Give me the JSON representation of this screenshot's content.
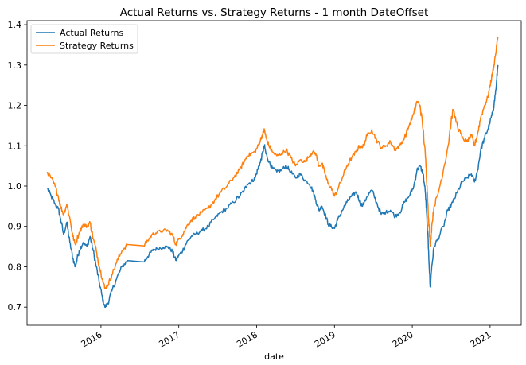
{
  "chart_data": {
    "type": "line",
    "title": "Actual Returns vs. Strategy Returns - 1 month DateOffset",
    "xlabel": "date",
    "ylabel": "",
    "xlim": [
      2015.05,
      2021.4
    ],
    "ylim": [
      0.655,
      1.41
    ],
    "x_ticks": [
      2016,
      2017,
      2018,
      2019,
      2020,
      2021
    ],
    "x_tick_labels": [
      "2016",
      "2017",
      "2018",
      "2019",
      "2020",
      "2021"
    ],
    "y_ticks": [
      0.7,
      0.8,
      0.9,
      1.0,
      1.1,
      1.2,
      1.3,
      1.4
    ],
    "y_tick_labels": [
      "0.7",
      "0.8",
      "0.9",
      "1.0",
      "1.1",
      "1.2",
      "1.3",
      "1.4"
    ],
    "grid": false,
    "legend_position": "top-left",
    "series": [
      {
        "name": "Actual Returns",
        "color": "#1f77b4",
        "points": [
          [
            2015.31,
            0.995
          ],
          [
            2015.36,
            0.975
          ],
          [
            2015.41,
            0.955
          ],
          [
            2015.45,
            0.945
          ],
          [
            2015.48,
            0.92
          ],
          [
            2015.52,
            0.88
          ],
          [
            2015.56,
            0.91
          ],
          [
            2015.6,
            0.86
          ],
          [
            2015.64,
            0.82
          ],
          [
            2015.67,
            0.8
          ],
          [
            2015.72,
            0.84
          ],
          [
            2015.77,
            0.86
          ],
          [
            2015.82,
            0.85
          ],
          [
            2015.86,
            0.875
          ],
          [
            2015.9,
            0.84
          ],
          [
            2015.94,
            0.8
          ],
          [
            2015.98,
            0.76
          ],
          [
            2016.02,
            0.72
          ],
          [
            2016.05,
            0.7
          ],
          [
            2016.09,
            0.71
          ],
          [
            2016.14,
            0.74
          ],
          [
            2016.2,
            0.77
          ],
          [
            2016.27,
            0.8
          ],
          [
            2016.34,
            0.815
          ],
          [
            2016.55,
            0.812
          ],
          [
            2016.6,
            0.825
          ],
          [
            2016.66,
            0.84
          ],
          [
            2016.72,
            0.845
          ],
          [
            2016.8,
            0.848
          ],
          [
            2016.86,
            0.85
          ],
          [
            2016.92,
            0.838
          ],
          [
            2016.96,
            0.816
          ],
          [
            2017.0,
            0.828
          ],
          [
            2017.05,
            0.84
          ],
          [
            2017.1,
            0.86
          ],
          [
            2017.16,
            0.875
          ],
          [
            2017.22,
            0.882
          ],
          [
            2017.3,
            0.89
          ],
          [
            2017.38,
            0.9
          ],
          [
            2017.46,
            0.92
          ],
          [
            2017.54,
            0.935
          ],
          [
            2017.62,
            0.945
          ],
          [
            2017.7,
            0.96
          ],
          [
            2017.78,
            0.975
          ],
          [
            2017.84,
            0.99
          ],
          [
            2017.88,
            1.005
          ],
          [
            2017.93,
            1.01
          ],
          [
            2017.98,
            1.02
          ],
          [
            2018.02,
            1.045
          ],
          [
            2018.05,
            1.06
          ],
          [
            2018.08,
            1.085
          ],
          [
            2018.1,
            1.1
          ],
          [
            2018.12,
            1.08
          ],
          [
            2018.16,
            1.06
          ],
          [
            2018.2,
            1.045
          ],
          [
            2018.26,
            1.035
          ],
          [
            2018.32,
            1.04
          ],
          [
            2018.38,
            1.05
          ],
          [
            2018.44,
            1.035
          ],
          [
            2018.5,
            1.02
          ],
          [
            2018.56,
            1.03
          ],
          [
            2018.62,
            1.015
          ],
          [
            2018.68,
            1.005
          ],
          [
            2018.72,
            0.99
          ],
          [
            2018.76,
            0.965
          ],
          [
            2018.8,
            0.94
          ],
          [
            2018.84,
            0.95
          ],
          [
            2018.88,
            0.93
          ],
          [
            2018.92,
            0.905
          ],
          [
            2018.96,
            0.9
          ],
          [
            2019.0,
            0.895
          ],
          [
            2019.04,
            0.915
          ],
          [
            2019.1,
            0.94
          ],
          [
            2019.16,
            0.96
          ],
          [
            2019.22,
            0.975
          ],
          [
            2019.28,
            0.985
          ],
          [
            2019.32,
            0.965
          ],
          [
            2019.36,
            0.95
          ],
          [
            2019.42,
            0.975
          ],
          [
            2019.48,
            0.99
          ],
          [
            2019.54,
            0.96
          ],
          [
            2019.6,
            0.93
          ],
          [
            2019.66,
            0.935
          ],
          [
            2019.72,
            0.94
          ],
          [
            2019.78,
            0.925
          ],
          [
            2019.84,
            0.935
          ],
          [
            2019.9,
            0.96
          ],
          [
            2019.96,
            0.975
          ],
          [
            2020.02,
            1.0
          ],
          [
            2020.06,
            1.04
          ],
          [
            2020.1,
            1.05
          ],
          [
            2020.14,
            1.03
          ],
          [
            2020.17,
            0.98
          ],
          [
            2020.19,
            0.91
          ],
          [
            2020.21,
            0.84
          ],
          [
            2020.23,
            0.75
          ],
          [
            2020.25,
            0.8
          ],
          [
            2020.28,
            0.85
          ],
          [
            2020.33,
            0.87
          ],
          [
            2020.4,
            0.9
          ],
          [
            2020.46,
            0.94
          ],
          [
            2020.52,
            0.96
          ],
          [
            2020.58,
            0.985
          ],
          [
            2020.64,
            1.01
          ],
          [
            2020.7,
            1.02
          ],
          [
            2020.76,
            1.03
          ],
          [
            2020.8,
            1.01
          ],
          [
            2020.84,
            1.04
          ],
          [
            2020.88,
            1.09
          ],
          [
            2020.93,
            1.12
          ],
          [
            2020.97,
            1.14
          ],
          [
            2021.0,
            1.16
          ],
          [
            2021.03,
            1.18
          ],
          [
            2021.05,
            1.2
          ],
          [
            2021.08,
            1.25
          ],
          [
            2021.1,
            1.3
          ]
        ]
      },
      {
        "name": "Strategy Returns",
        "color": "#ff7f0e",
        "points": [
          [
            2015.31,
            1.035
          ],
          [
            2015.36,
            1.02
          ],
          [
            2015.41,
            1.0
          ],
          [
            2015.45,
            0.975
          ],
          [
            2015.48,
            0.95
          ],
          [
            2015.52,
            0.93
          ],
          [
            2015.56,
            0.955
          ],
          [
            2015.6,
            0.92
          ],
          [
            2015.64,
            0.875
          ],
          [
            2015.67,
            0.855
          ],
          [
            2015.72,
            0.885
          ],
          [
            2015.77,
            0.905
          ],
          [
            2015.82,
            0.9
          ],
          [
            2015.86,
            0.91
          ],
          [
            2015.9,
            0.87
          ],
          [
            2015.94,
            0.84
          ],
          [
            2015.98,
            0.8
          ],
          [
            2016.02,
            0.77
          ],
          [
            2016.05,
            0.745
          ],
          [
            2016.09,
            0.755
          ],
          [
            2016.14,
            0.78
          ],
          [
            2016.2,
            0.81
          ],
          [
            2016.27,
            0.84
          ],
          [
            2016.34,
            0.855
          ],
          [
            2016.55,
            0.852
          ],
          [
            2016.6,
            0.865
          ],
          [
            2016.66,
            0.88
          ],
          [
            2016.72,
            0.885
          ],
          [
            2016.8,
            0.89
          ],
          [
            2016.86,
            0.89
          ],
          [
            2016.92,
            0.878
          ],
          [
            2016.96,
            0.856
          ],
          [
            2017.0,
            0.868
          ],
          [
            2017.05,
            0.88
          ],
          [
            2017.1,
            0.9
          ],
          [
            2017.16,
            0.915
          ],
          [
            2017.22,
            0.925
          ],
          [
            2017.3,
            0.935
          ],
          [
            2017.38,
            0.945
          ],
          [
            2017.46,
            0.965
          ],
          [
            2017.54,
            0.985
          ],
          [
            2017.62,
            1.0
          ],
          [
            2017.7,
            1.02
          ],
          [
            2017.78,
            1.04
          ],
          [
            2017.84,
            1.06
          ],
          [
            2017.88,
            1.075
          ],
          [
            2017.93,
            1.08
          ],
          [
            2017.98,
            1.085
          ],
          [
            2018.02,
            1.1
          ],
          [
            2018.05,
            1.115
          ],
          [
            2018.08,
            1.13
          ],
          [
            2018.1,
            1.14
          ],
          [
            2018.12,
            1.12
          ],
          [
            2018.16,
            1.1
          ],
          [
            2018.2,
            1.085
          ],
          [
            2018.26,
            1.075
          ],
          [
            2018.32,
            1.08
          ],
          [
            2018.38,
            1.09
          ],
          [
            2018.44,
            1.07
          ],
          [
            2018.5,
            1.05
          ],
          [
            2018.56,
            1.065
          ],
          [
            2018.62,
            1.06
          ],
          [
            2018.68,
            1.075
          ],
          [
            2018.72,
            1.085
          ],
          [
            2018.76,
            1.08
          ],
          [
            2018.8,
            1.05
          ],
          [
            2018.84,
            1.055
          ],
          [
            2018.88,
            1.03
          ],
          [
            2018.92,
            1.005
          ],
          [
            2018.96,
            0.995
          ],
          [
            2019.0,
            0.975
          ],
          [
            2019.04,
            0.99
          ],
          [
            2019.1,
            1.02
          ],
          [
            2019.16,
            1.05
          ],
          [
            2019.22,
            1.07
          ],
          [
            2019.28,
            1.085
          ],
          [
            2019.32,
            1.1
          ],
          [
            2019.36,
            1.095
          ],
          [
            2019.42,
            1.125
          ],
          [
            2019.48,
            1.14
          ],
          [
            2019.54,
            1.115
          ],
          [
            2019.6,
            1.095
          ],
          [
            2019.66,
            1.1
          ],
          [
            2019.72,
            1.11
          ],
          [
            2019.78,
            1.09
          ],
          [
            2019.84,
            1.1
          ],
          [
            2019.9,
            1.12
          ],
          [
            2019.96,
            1.15
          ],
          [
            2020.02,
            1.18
          ],
          [
            2020.06,
            1.21
          ],
          [
            2020.1,
            1.2
          ],
          [
            2020.14,
            1.14
          ],
          [
            2020.17,
            1.07
          ],
          [
            2020.19,
            1.0
          ],
          [
            2020.21,
            0.92
          ],
          [
            2020.23,
            0.85
          ],
          [
            2020.25,
            0.9
          ],
          [
            2020.28,
            0.95
          ],
          [
            2020.33,
            0.98
          ],
          [
            2020.4,
            1.04
          ],
          [
            2020.46,
            1.1
          ],
          [
            2020.52,
            1.19
          ],
          [
            2020.58,
            1.15
          ],
          [
            2020.64,
            1.12
          ],
          [
            2020.7,
            1.11
          ],
          [
            2020.76,
            1.125
          ],
          [
            2020.8,
            1.1
          ],
          [
            2020.84,
            1.13
          ],
          [
            2020.88,
            1.17
          ],
          [
            2020.93,
            1.2
          ],
          [
            2020.97,
            1.22
          ],
          [
            2021.0,
            1.25
          ],
          [
            2021.03,
            1.28
          ],
          [
            2021.05,
            1.3
          ],
          [
            2021.08,
            1.34
          ],
          [
            2021.1,
            1.37
          ]
        ]
      }
    ]
  }
}
